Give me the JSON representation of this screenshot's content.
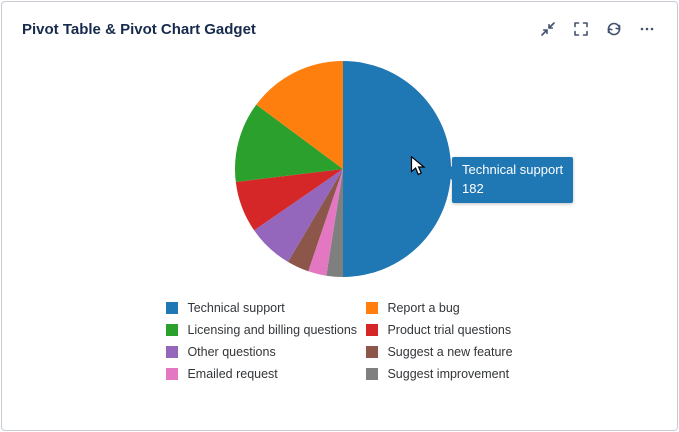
{
  "header": {
    "title": "Pivot Table & Pivot Chart Gadget",
    "actions": [
      {
        "name": "collapse",
        "title": "Collapse"
      },
      {
        "name": "fullscreen",
        "title": "Full screen"
      },
      {
        "name": "refresh",
        "title": "Refresh"
      },
      {
        "name": "more",
        "title": "More options"
      }
    ]
  },
  "tooltip": {
    "label": "Technical support",
    "value": "182",
    "color": "#1f77b4"
  },
  "theme": {
    "title_color": "#172b4d",
    "icon_color": "#42526e",
    "border_color": "#c6cbd1",
    "legend_text_color": "#333639"
  },
  "chart_data": {
    "type": "pie",
    "title": "",
    "categories": [
      "Technical support",
      "Report a bug",
      "Licensing and billing questions",
      "Product trial questions",
      "Other questions",
      "Suggest a new feature",
      "Emailed request",
      "Suggest improvement"
    ],
    "values": [
      182,
      54,
      44,
      28,
      25,
      12,
      10,
      9
    ],
    "colors": [
      "#1f77b4",
      "#ff7f0e",
      "#2ca02c",
      "#d62728",
      "#9467bd",
      "#8c564b",
      "#e377c2",
      "#7f7f7f"
    ],
    "total": 364,
    "highlighted_slice": "Technical support",
    "legend_position": "bottom",
    "legend_columns": 2,
    "start_angle": "top",
    "slice_draw_order": [
      0,
      7,
      6,
      5,
      4,
      3,
      2,
      1
    ]
  }
}
